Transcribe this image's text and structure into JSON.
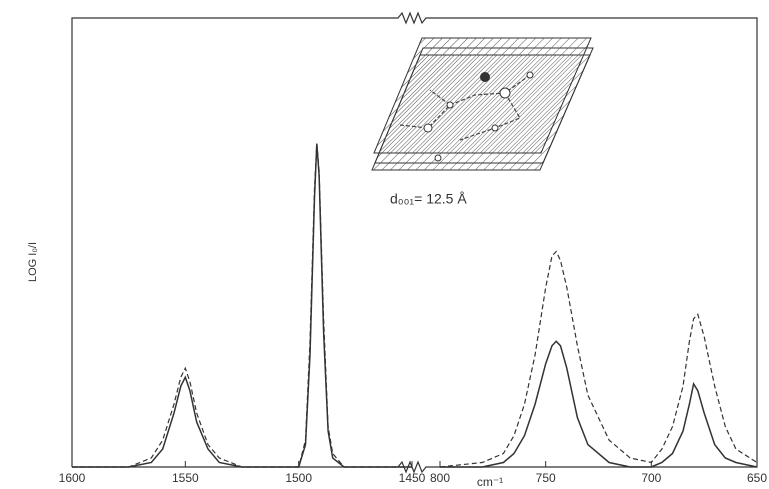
{
  "chart_data": [
    {
      "type": "line",
      "ylabel": "LOG I₀/I",
      "xlim": [
        1600,
        1450
      ],
      "xticks": [
        1600,
        1550,
        1500,
        1450
      ],
      "ylim": [
        0,
        100
      ],
      "x": [
        1600,
        1575,
        1565,
        1560,
        1555,
        1552,
        1550,
        1548,
        1545,
        1540,
        1535,
        1525,
        1510,
        1500,
        1497,
        1495,
        1493,
        1492,
        1491,
        1489,
        1487,
        1485,
        1480,
        1460,
        1450
      ],
      "series": [
        {
          "color": "#333333",
          "dash": false,
          "values": [
            0,
            0,
            1,
            4,
            12,
            18,
            20,
            17,
            10,
            4,
            1,
            0,
            0,
            0,
            5,
            25,
            60,
            72,
            65,
            30,
            8,
            2,
            0,
            0,
            0
          ]
        },
        {
          "color": "#333333",
          "dash": true,
          "values": [
            0,
            0,
            2,
            6,
            14,
            20,
            22,
            19,
            12,
            5,
            2,
            0,
            0,
            0,
            6,
            28,
            62,
            72,
            66,
            33,
            9,
            3,
            0,
            0,
            0
          ]
        }
      ]
    },
    {
      "type": "line",
      "xlabel": "cm⁻¹",
      "annotation": "d₀₀₁= 12.5 Å",
      "xlim": [
        800,
        650
      ],
      "xticks": [
        800,
        750,
        700,
        650
      ],
      "ylim": [
        0,
        100
      ],
      "x": [
        800,
        780,
        770,
        765,
        760,
        755,
        750,
        747,
        745,
        743,
        740,
        735,
        730,
        720,
        710,
        700,
        695,
        690,
        685,
        682,
        680,
        678,
        675,
        670,
        665,
        660,
        650
      ],
      "series": [
        {
          "color": "#333333",
          "dash": false,
          "values": [
            0,
            0,
            1,
            3,
            7,
            14,
            23,
            27,
            28,
            27,
            22,
            11,
            5,
            1,
            0,
            0,
            1,
            3,
            8,
            14,
            18.5,
            17,
            12,
            5,
            2,
            1,
            0
          ]
        },
        {
          "color": "#333333",
          "dash": true,
          "values": [
            0,
            1,
            3,
            7,
            14,
            25,
            40,
            47,
            48,
            46,
            40,
            27,
            16,
            6,
            2,
            1,
            4,
            9,
            18,
            28,
            33,
            34,
            29,
            18,
            9,
            4,
            1
          ]
        }
      ]
    }
  ]
}
